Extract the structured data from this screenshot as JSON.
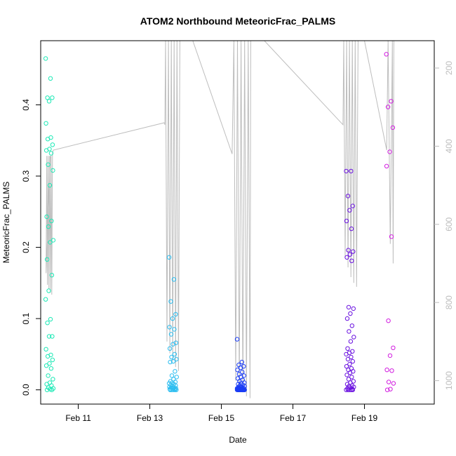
{
  "chart_data": {
    "type": "scatter",
    "title": "ATOM2 Northbound MeteoricFrac_PALMS",
    "xlabel": "Date",
    "ylabel": "MeteoricFrac_PALMS",
    "x_ticks": [
      "Feb 11",
      "Feb 13",
      "Feb 15",
      "Feb 17",
      "Feb 19"
    ],
    "y_ticks": [
      "0.0",
      "0.1",
      "0.2",
      "0.3",
      "0.4"
    ],
    "y2_ticks": [
      "200",
      "400",
      "600",
      "800",
      "1000"
    ],
    "xlim_days": [
      9.95,
      20.95
    ],
    "ylim": [
      -0.02,
      0.49
    ],
    "y2lim_reversed": [
      130,
      1060
    ],
    "grid": false,
    "legend": "none",
    "colors": {
      "frame": "#000000",
      "pressure_line": "#bdbdbd",
      "flight1": "#1de9b6",
      "flight2": "#2bbdf0",
      "flight3": "#1a3cf5",
      "flight4": "#6a11e0",
      "flight5": "#d21ee0"
    },
    "series": [
      {
        "color_key": "flight1",
        "x_days": 10.2,
        "values": [
          0.465,
          0.437,
          0.41,
          0.41,
          0.405,
          0.374,
          0.354,
          0.352,
          0.344,
          0.338,
          0.336,
          0.332,
          0.316,
          0.308,
          0.287,
          0.243,
          0.237,
          0.229,
          0.21,
          0.207,
          0.183,
          0.161,
          0.139,
          0.127,
          0.099,
          0.094,
          0.075,
          0.075,
          0.057,
          0.049,
          0.047,
          0.042,
          0.037,
          0.034,
          0.03,
          0.02,
          0.015,
          0.01,
          0.008,
          0.006,
          0.003,
          0.002,
          0.001,
          0.0,
          0.0
        ]
      },
      {
        "color_key": "flight2",
        "x_days": 13.65,
        "values": [
          0.186,
          0.155,
          0.124,
          0.106,
          0.1,
          0.088,
          0.085,
          0.078,
          0.066,
          0.064,
          0.058,
          0.05,
          0.046,
          0.043,
          0.04,
          0.039,
          0.026,
          0.02,
          0.018,
          0.015,
          0.012,
          0.011,
          0.01,
          0.009,
          0.008,
          0.007,
          0.006,
          0.005,
          0.004,
          0.003,
          0.003,
          0.002,
          0.002,
          0.001,
          0.001,
          0.0,
          0.0,
          0.0,
          0.0,
          0.0
        ]
      },
      {
        "color_key": "flight3",
        "x_days": 15.55,
        "values": [
          0.071,
          0.039,
          0.035,
          0.033,
          0.031,
          0.028,
          0.025,
          0.022,
          0.02,
          0.018,
          0.016,
          0.014,
          0.012,
          0.01,
          0.009,
          0.008,
          0.007,
          0.006,
          0.005,
          0.004,
          0.004,
          0.003,
          0.003,
          0.002,
          0.002,
          0.002,
          0.001,
          0.001,
          0.001,
          0.001,
          0.0,
          0.0,
          0.0,
          0.0,
          0.0,
          0.0,
          0.0,
          0.0,
          0.0,
          0.0,
          0.0,
          0.0,
          0.0,
          0.0,
          0.0,
          0.0,
          0.0,
          0.0,
          0.0,
          0.0
        ]
      },
      {
        "color_key": "flight4",
        "x_days": 18.6,
        "values": [
          0.307,
          0.307,
          0.272,
          0.258,
          0.252,
          0.237,
          0.226,
          0.196,
          0.194,
          0.19,
          0.186,
          0.181,
          0.116,
          0.114,
          0.107,
          0.1,
          0.09,
          0.082,
          0.074,
          0.068,
          0.058,
          0.054,
          0.052,
          0.05,
          0.046,
          0.043,
          0.04,
          0.036,
          0.033,
          0.03,
          0.028,
          0.026,
          0.024,
          0.021,
          0.018,
          0.015,
          0.012,
          0.01,
          0.008,
          0.006,
          0.005,
          0.004,
          0.003,
          0.002,
          0.001,
          0.0,
          0.0,
          0.0,
          0.0,
          0.0
        ]
      },
      {
        "color_key": "flight5",
        "x_days": 19.72,
        "values": [
          0.471,
          0.405,
          0.397,
          0.368,
          0.334,
          0.314,
          0.215,
          0.097,
          0.059,
          0.048,
          0.028,
          0.027,
          0.011,
          0.009,
          0.001,
          0.0
        ]
      }
    ],
    "pressure_profile_hpa": [
      [
        10.22,
        425
      ],
      [
        10.1,
        725
      ],
      [
        10.12,
        425
      ],
      [
        10.14,
        755
      ],
      [
        10.16,
        425
      ],
      [
        10.18,
        765
      ],
      [
        10.2,
        425
      ],
      [
        10.22,
        775
      ],
      [
        10.24,
        425
      ],
      [
        10.26,
        780
      ],
      [
        10.28,
        420
      ],
      [
        10.3,
        410
      ],
      [
        13.4,
        340
      ],
      [
        13.42,
        345
      ],
      [
        13.44,
        130
      ],
      [
        13.48,
        900
      ],
      [
        13.52,
        130
      ],
      [
        13.56,
        930
      ],
      [
        13.6,
        130
      ],
      [
        13.64,
        950
      ],
      [
        13.68,
        130
      ],
      [
        13.72,
        965
      ],
      [
        13.76,
        130
      ],
      [
        13.8,
        975
      ],
      [
        13.84,
        130
      ],
      [
        14.2,
        130
      ],
      [
        15.3,
        420
      ],
      [
        15.35,
        130
      ],
      [
        15.4,
        1000
      ],
      [
        15.45,
        130
      ],
      [
        15.5,
        1020
      ],
      [
        15.55,
        130
      ],
      [
        15.6,
        1030
      ],
      [
        15.65,
        130
      ],
      [
        15.7,
        1040
      ],
      [
        15.75,
        130
      ],
      [
        15.8,
        1045
      ],
      [
        15.82,
        130
      ],
      [
        16.2,
        130
      ],
      [
        18.4,
        345
      ],
      [
        18.42,
        130
      ],
      [
        18.46,
        685
      ],
      [
        18.5,
        130
      ],
      [
        18.54,
        710
      ],
      [
        18.58,
        130
      ],
      [
        18.62,
        735
      ],
      [
        18.66,
        130
      ],
      [
        18.7,
        750
      ],
      [
        18.74,
        130
      ],
      [
        18.78,
        760
      ],
      [
        18.82,
        130
      ],
      [
        19.0,
        130
      ],
      [
        19.62,
        410
      ],
      [
        19.66,
        130
      ],
      [
        19.72,
        650
      ],
      [
        19.78,
        130
      ],
      [
        19.8,
        700
      ],
      [
        19.82,
        130
      ]
    ]
  }
}
